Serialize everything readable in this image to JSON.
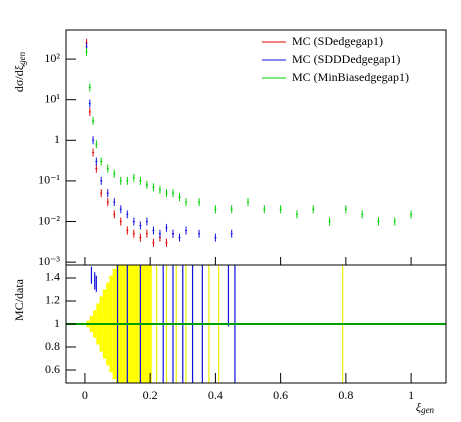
{
  "chart_data": [
    {
      "type": "errorbar",
      "y_label": {
        "main": "dσ/dξ",
        "sub": "gen"
      },
      "log_y": true,
      "xlim": [
        -0.058,
        1.107
      ],
      "xticks": [
        0,
        0.2,
        0.4,
        0.6,
        0.8,
        1
      ],
      "ylim": [
        0.00085,
        520
      ],
      "yticks": [
        {
          "value": 0.001,
          "label": "10⁻³"
        },
        {
          "value": 0.01,
          "label": "10⁻²"
        },
        {
          "value": 0.1,
          "label": "10⁻¹"
        },
        1,
        {
          "value": 10,
          "label": "10¹"
        },
        {
          "value": 100,
          "label": "10²"
        }
      ],
      "legend": "upper right",
      "x": [
        0.005,
        0.015,
        0.025,
        0.035,
        0.05,
        0.07,
        0.09,
        0.11,
        0.13,
        0.15,
        0.17,
        0.19,
        0.21,
        0.23,
        0.25,
        0.27,
        0.29,
        0.31,
        0.35,
        0.4,
        0.45,
        0.5,
        0.55,
        0.6,
        0.65,
        0.7,
        0.75,
        0.8,
        0.85,
        0.9,
        0.95,
        1.0
      ],
      "series": [
        {
          "name": "MC (SDedgegap1)",
          "color": "#e00000",
          "values": [
            250,
            5,
            0.5,
            0.2,
            0.05,
            0.03,
            0.015,
            0.01,
            0.006,
            0.005,
            0.004,
            0.005,
            0.003,
            0.004,
            0.003,
            0.005,
            null,
            null,
            null,
            null,
            null,
            null,
            null,
            null,
            null,
            null,
            null,
            null,
            null,
            null,
            null,
            null
          ]
        },
        {
          "name": "MC (SDDDedgegap1)",
          "color": "#1010e0",
          "values": [
            200,
            8,
            1,
            0.3,
            0.1,
            0.05,
            0.03,
            0.02,
            0.015,
            0.01,
            0.008,
            0.01,
            0.006,
            0.005,
            0.007,
            0.005,
            0.004,
            0.006,
            0.005,
            0.004,
            0.005,
            null,
            null,
            null,
            null,
            null,
            null,
            null,
            null,
            null,
            null,
            null
          ]
        },
        {
          "name": "MC (MinBiasedgegap1)",
          "color": "#00d000",
          "values": [
            150,
            20,
            3,
            0.8,
            0.3,
            0.2,
            0.15,
            0.1,
            0.1,
            0.12,
            0.1,
            0.08,
            0.07,
            0.06,
            0.05,
            0.05,
            0.04,
            0.03,
            0.03,
            0.02,
            0.02,
            0.03,
            0.02,
            0.02,
            0.015,
            0.02,
            0.01,
            0.02,
            0.015,
            0.01,
            0.01,
            0.015
          ]
        }
      ]
    },
    {
      "type": "ratio",
      "y_label": "MC/data",
      "x_label": {
        "main": "ξ",
        "sub": "gen"
      },
      "xlim": [
        -0.058,
        1.107
      ],
      "xticks": [
        0,
        0.2,
        0.4,
        0.6,
        0.8,
        1
      ],
      "ylim": [
        0.487,
        1.513
      ],
      "yticks": [
        0.6,
        0.8,
        1,
        1.2,
        1.4
      ],
      "reference": {
        "value": 1,
        "color": "#00a000"
      },
      "series": [
        {
          "color": "#ffff00",
          "style": "band",
          "x": [
            0,
            0.01,
            0.02,
            0.03,
            0.04,
            0.05,
            0.06,
            0.07,
            0.08,
            0.09,
            0.1,
            0.11,
            0.12,
            0.13,
            0.14,
            0.15,
            0.16,
            0.17,
            0.18,
            0.19,
            0.2
          ],
          "lower": [
            1.0,
            0.97,
            0.93,
            0.88,
            0.82,
            0.76,
            0.7,
            0.64,
            0.58,
            0.52,
            0.45,
            0.4,
            0.35,
            0.3,
            0.25,
            0.2,
            0.15,
            0.1,
            0.05,
            0,
            0
          ],
          "upper": [
            1.0,
            1.03,
            1.07,
            1.12,
            1.18,
            1.24,
            1.3,
            1.36,
            1.42,
            1.48,
            1.55,
            1.6,
            1.65,
            1.7,
            1.75,
            1.8,
            1.85,
            1.9,
            1.95,
            2.0,
            2.0
          ]
        },
        {
          "color": "#f0f000",
          "style": "bars",
          "x": [
            0.22,
            0.25,
            0.28,
            0.31,
            0.38,
            0.41,
            0.79
          ],
          "lower": [
            0,
            0,
            0,
            0,
            0,
            0,
            0
          ],
          "upper": [
            2,
            2,
            2,
            2,
            2,
            2,
            2
          ]
        },
        {
          "color": "#1010e0",
          "style": "bars",
          "x": [
            0.02,
            0.03,
            0.035,
            0.1,
            0.13,
            0.17,
            0.24,
            0.27,
            0.3,
            0.33,
            0.36,
            0.44,
            0.46
          ],
          "lower": [
            1.35,
            1.3,
            1.28,
            0,
            0,
            0,
            0,
            0,
            0,
            0,
            0,
            0.98,
            0
          ],
          "upper": [
            1.5,
            1.45,
            1.42,
            2,
            2,
            2,
            2,
            2,
            2,
            2,
            2,
            2,
            2
          ]
        }
      ]
    }
  ]
}
